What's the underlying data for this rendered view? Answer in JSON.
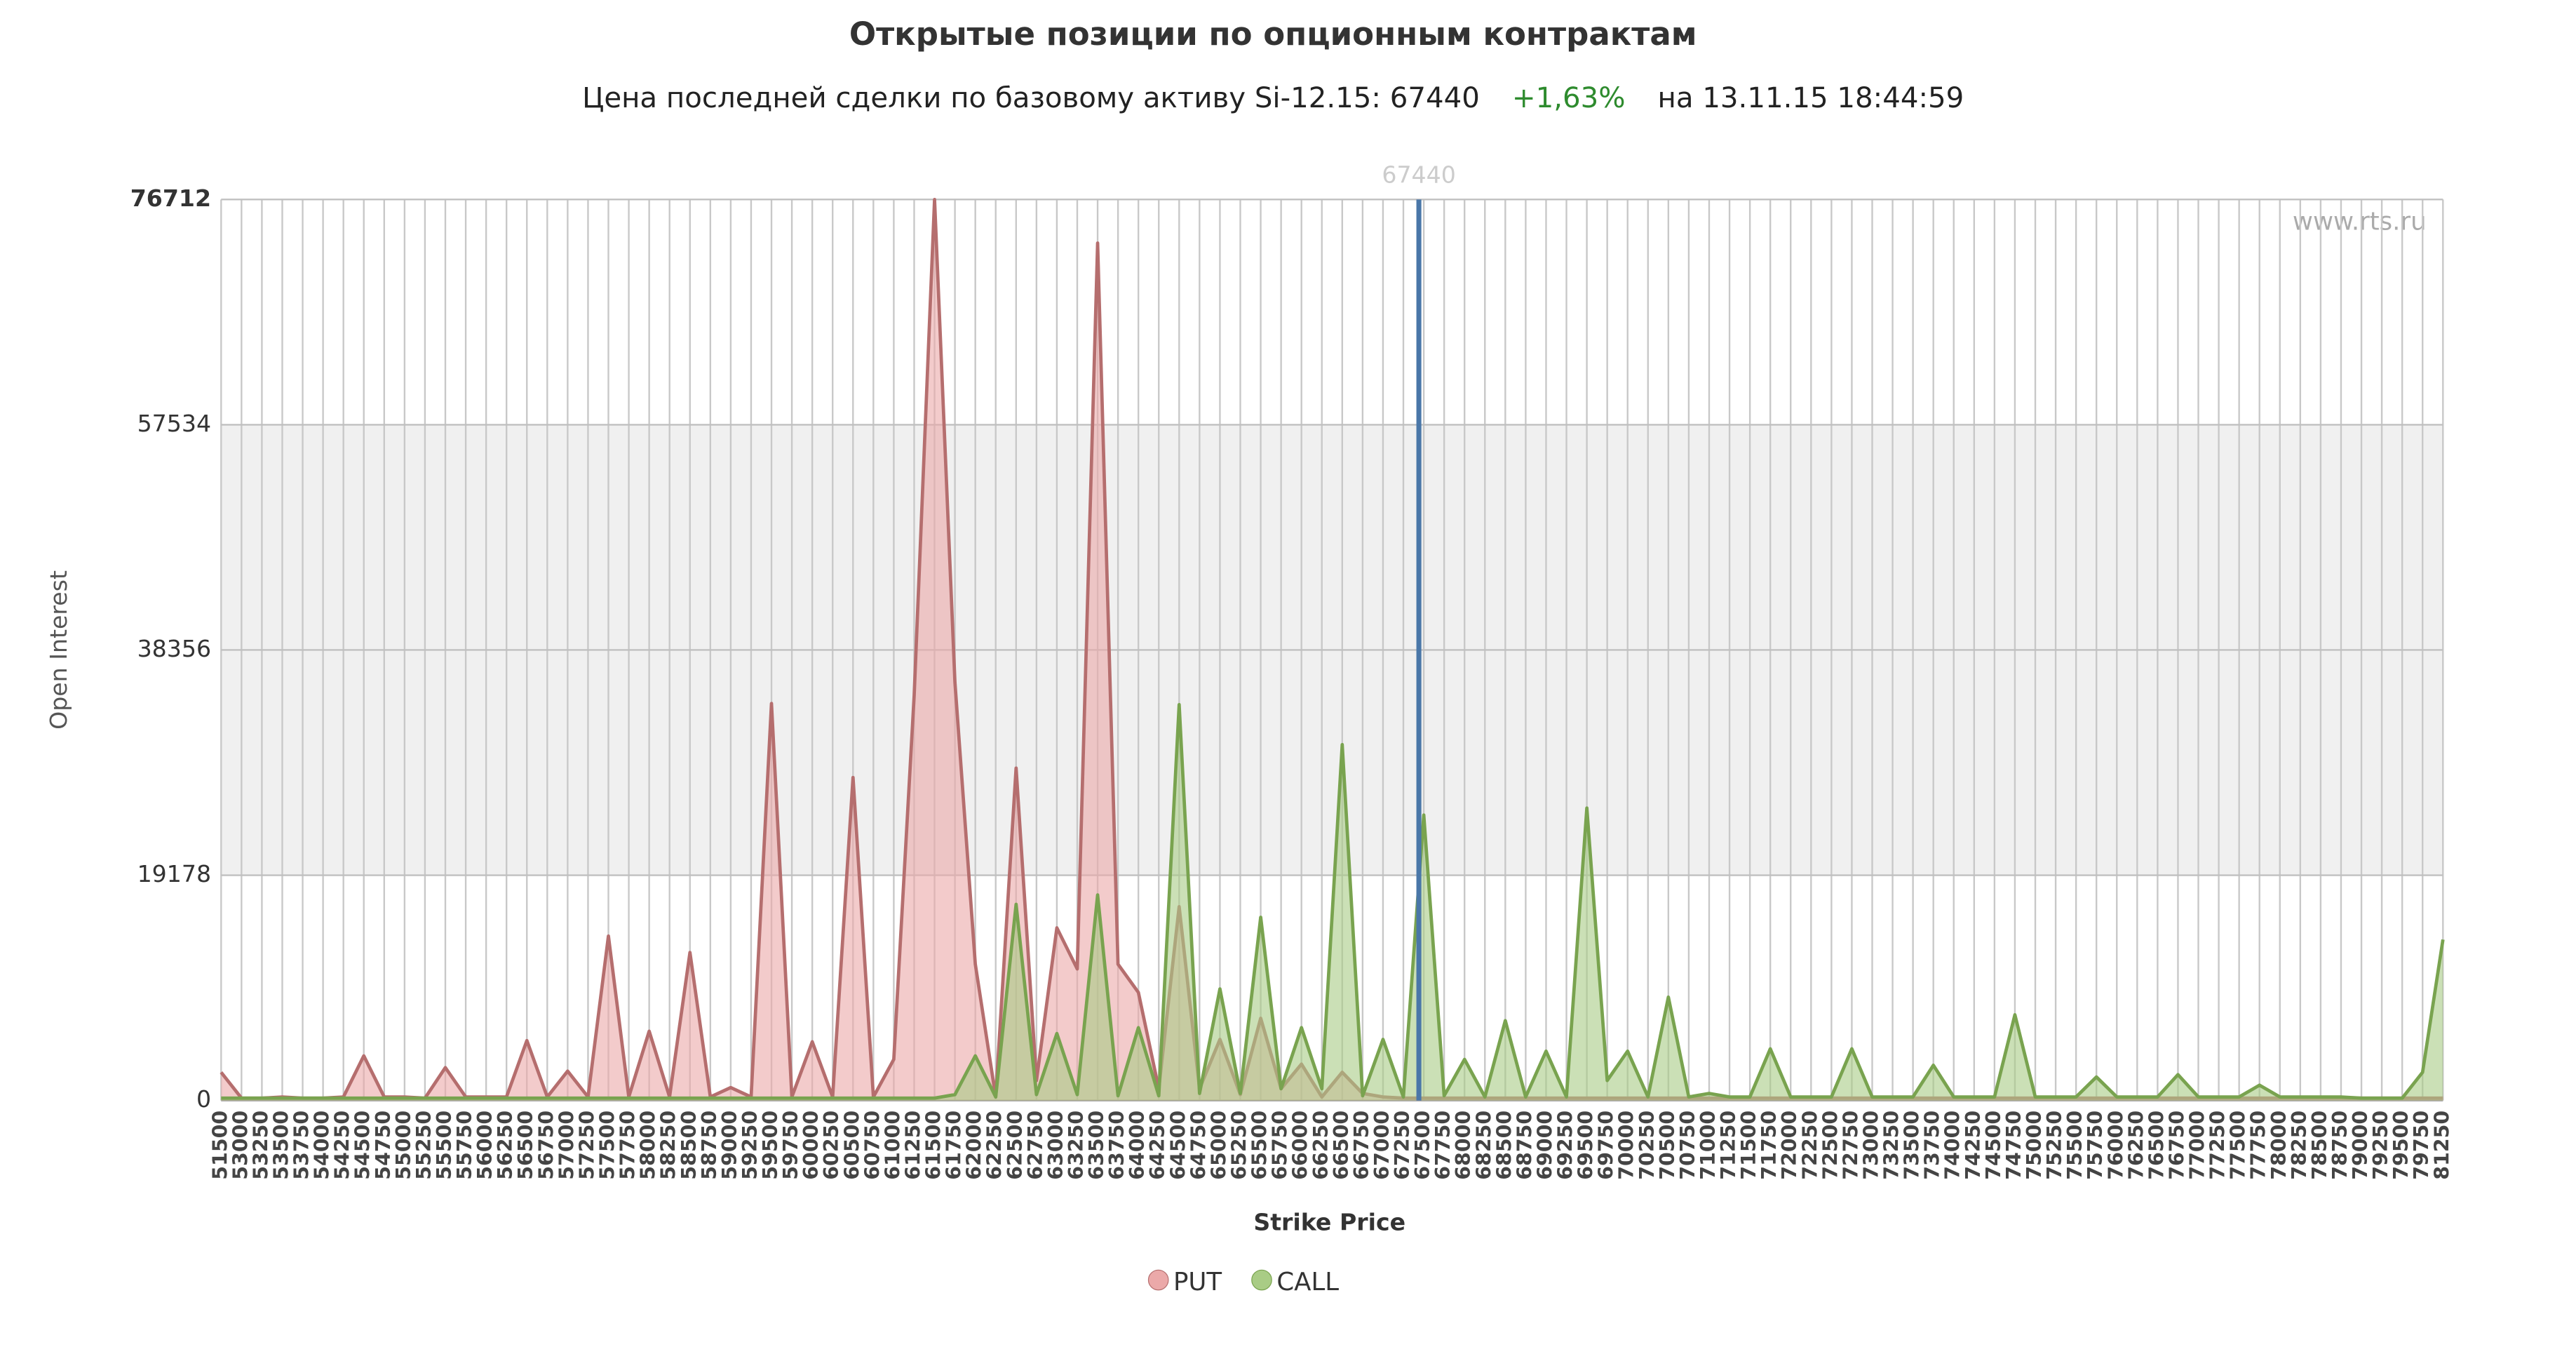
{
  "chart_data": {
    "type": "area",
    "title": "Открытые позиции по опционным контрактам",
    "subtitle_prefix": "Цена последней сделки по базовому активу Si-12.15:",
    "last_price": 67440,
    "change": "+1,63%",
    "timestamp": "на 13.11.15 18:44:59",
    "watermark": "www.rts.ru",
    "x_label": "Strike Price",
    "y_label": "Open Interest",
    "categories": [
      51500,
      53000,
      53250,
      53500,
      53750,
      54000,
      54250,
      54500,
      54750,
      55000,
      55250,
      55500,
      55750,
      56000,
      56250,
      56500,
      56750,
      57000,
      57250,
      57500,
      57750,
      58000,
      58250,
      58500,
      58750,
      59000,
      59250,
      59500,
      59750,
      60000,
      60250,
      60500,
      60750,
      61000,
      61250,
      61500,
      61750,
      62000,
      62250,
      62500,
      62750,
      63000,
      63250,
      63500,
      63750,
      64000,
      64250,
      64500,
      64750,
      65000,
      65250,
      65500,
      65750,
      66000,
      66250,
      66500,
      66750,
      67000,
      67250,
      67500,
      67750,
      68000,
      68250,
      68500,
      68750,
      69000,
      69250,
      69500,
      69750,
      70000,
      70250,
      70500,
      70750,
      71000,
      71250,
      71500,
      71750,
      72000,
      72250,
      72500,
      72750,
      73000,
      73250,
      73500,
      73750,
      74000,
      74250,
      74500,
      74750,
      75000,
      75250,
      75500,
      75750,
      76000,
      76250,
      76500,
      76750,
      77000,
      77250,
      77500,
      77750,
      78000,
      78250,
      78500,
      78750,
      79000,
      79250,
      79500,
      79750,
      81250
    ],
    "series": [
      {
        "name": "PUT",
        "color": "#b56e6e",
        "fill": "#eba9a9",
        "values": [
          2400,
          200,
          200,
          300,
          200,
          200,
          300,
          3800,
          300,
          300,
          200,
          2800,
          300,
          300,
          300,
          5100,
          300,
          2500,
          300,
          14000,
          300,
          5900,
          300,
          12600,
          300,
          1100,
          300,
          33800,
          300,
          5000,
          300,
          27500,
          300,
          3500,
          34500,
          76712,
          35600,
          11600,
          300,
          28300,
          1700,
          14700,
          11200,
          73000,
          11600,
          9200,
          1000,
          16500,
          1000,
          5200,
          500,
          7000,
          1000,
          3100,
          300,
          2400,
          600,
          300,
          200,
          200,
          200,
          200,
          200,
          200,
          200,
          200,
          200,
          200,
          200,
          200,
          200,
          200,
          200,
          200,
          200,
          200,
          200,
          200,
          200,
          200,
          200,
          200,
          200,
          200,
          200,
          200,
          200,
          200,
          200,
          200,
          200,
          200,
          200,
          200,
          200,
          200,
          200,
          200,
          200,
          200,
          200,
          200,
          200,
          200,
          200,
          200,
          200,
          200,
          200,
          200
        ]
      },
      {
        "name": "CALL",
        "color": "#79a34f",
        "fill": "#a9cc85",
        "values": [
          200,
          200,
          200,
          200,
          200,
          200,
          200,
          200,
          200,
          200,
          200,
          200,
          200,
          200,
          200,
          200,
          200,
          200,
          200,
          200,
          200,
          200,
          200,
          200,
          200,
          200,
          200,
          200,
          200,
          200,
          200,
          200,
          200,
          200,
          200,
          200,
          500,
          3800,
          300,
          16700,
          500,
          5700,
          500,
          17500,
          400,
          6200,
          400,
          33700,
          600,
          9500,
          600,
          15600,
          1000,
          6200,
          1000,
          30300,
          400,
          5200,
          300,
          24300,
          400,
          3500,
          300,
          6800,
          300,
          4200,
          300,
          24900,
          1700,
          4200,
          300,
          8800,
          300,
          600,
          300,
          300,
          4400,
          300,
          300,
          300,
          4400,
          300,
          300,
          300,
          3000,
          300,
          300,
          300,
          7300,
          300,
          300,
          300,
          2000,
          300,
          300,
          300,
          2200,
          300,
          300,
          300,
          1300,
          300,
          300,
          300,
          300,
          200,
          200,
          200,
          2400,
          13700
        ]
      }
    ],
    "ylim": [
      0,
      76712
    ],
    "yticks": [
      0,
      19178,
      38356,
      57534,
      76712
    ],
    "grid": true,
    "legend": "bottom"
  }
}
